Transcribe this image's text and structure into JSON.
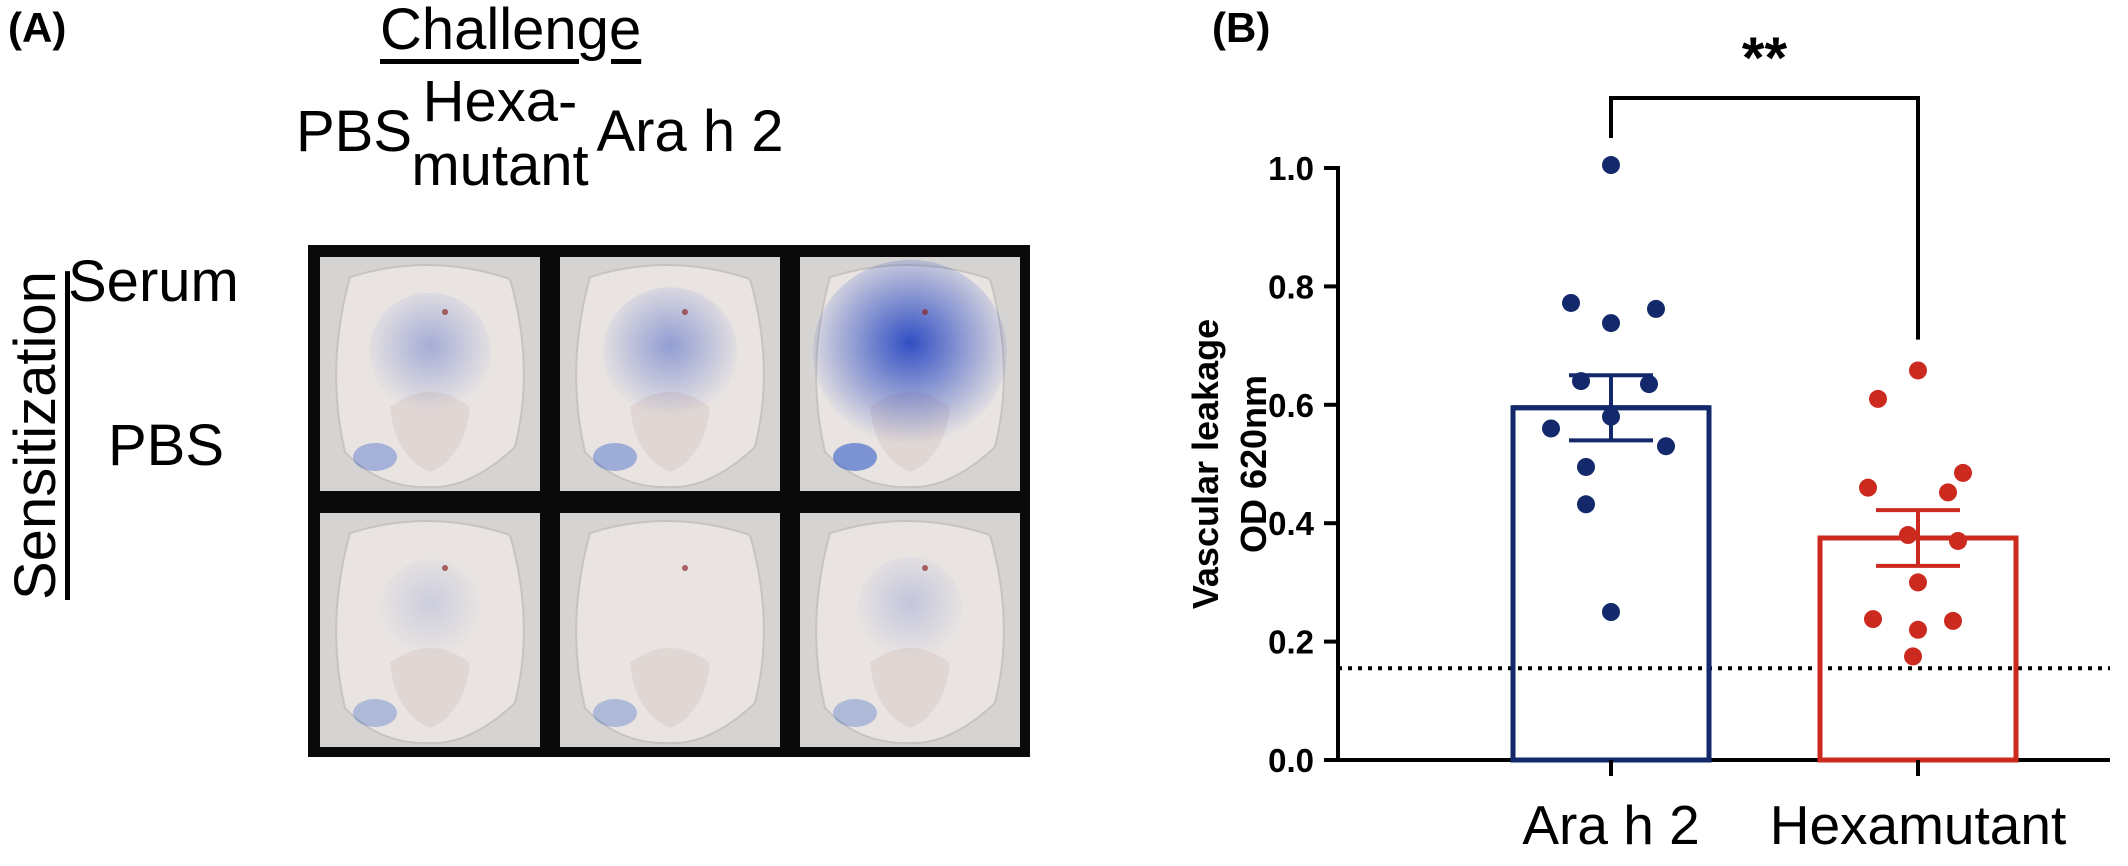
{
  "panel_a": {
    "label": "(A)",
    "title": "Challenge",
    "columns": [
      "PBS",
      "Hexa-\nmutant",
      "Ara h 2"
    ],
    "rows": [
      "Serum",
      "PBS"
    ],
    "side_label": "Sensitization",
    "stain_intensity": [
      [
        0.35,
        0.45,
        0.95
      ],
      [
        0.15,
        0.05,
        0.2
      ]
    ]
  },
  "panel_b": {
    "label": "(B)",
    "significance": "**",
    "chart_data": {
      "type": "bar",
      "categories": [
        "Ara h 2",
        "Hexamutant"
      ],
      "ylabel": "Vascular leakage\nOD 620nm",
      "ylim": [
        0.0,
        1.0
      ],
      "yticks": [
        "0.0",
        "0.2",
        "0.4",
        "0.6",
        "0.8",
        "1.0"
      ],
      "baseline": 0.155,
      "colors": [
        "#13296b",
        "#cc2a1f"
      ],
      "series": [
        {
          "category": "Ara h 2",
          "mean": 0.595,
          "sem": 0.055,
          "points": [
            1.005,
            0.772,
            0.762,
            0.738,
            0.64,
            0.635,
            0.58,
            0.56,
            0.53,
            0.495,
            0.432,
            0.25
          ]
        },
        {
          "category": "Hexamutant",
          "mean": 0.375,
          "sem": 0.047,
          "points": [
            0.658,
            0.61,
            0.485,
            0.46,
            0.452,
            0.38,
            0.37,
            0.3,
            0.238,
            0.235,
            0.22,
            0.175
          ]
        }
      ]
    }
  }
}
